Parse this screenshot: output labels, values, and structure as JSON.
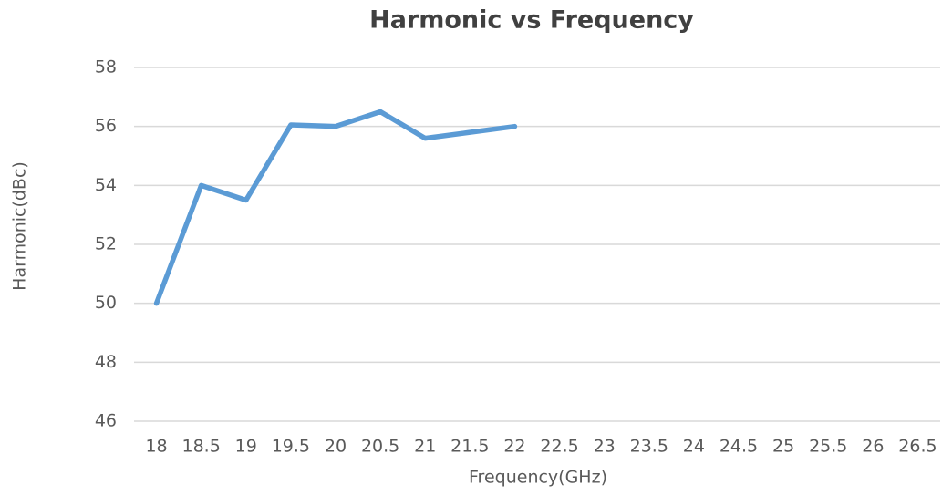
{
  "chart_data": {
    "type": "line",
    "title": "Harmonic vs Frequency",
    "x_label": "Frequency(GHz)",
    "y_label": "Harmonic(dBc)",
    "categories": [
      "18",
      "18.5",
      "19",
      "19.5",
      "20",
      "20.5",
      "21",
      "21.5",
      "22",
      "22.5",
      "23",
      "23.5",
      "24",
      "24.5",
      "25",
      "25.5",
      "26",
      "26.5"
    ],
    "series": [
      {
        "name": "Harmonic",
        "color": "#5b9bd5",
        "values": [
          50,
          54,
          53.5,
          56.05,
          56,
          56.5,
          55.6,
          55.8,
          56,
          null,
          null,
          null,
          null,
          null,
          null,
          null,
          null,
          null
        ]
      }
    ],
    "ylim": [
      46,
      58
    ],
    "yticks": [
      46,
      48,
      50,
      52,
      54,
      56,
      58
    ],
    "grid": true
  }
}
